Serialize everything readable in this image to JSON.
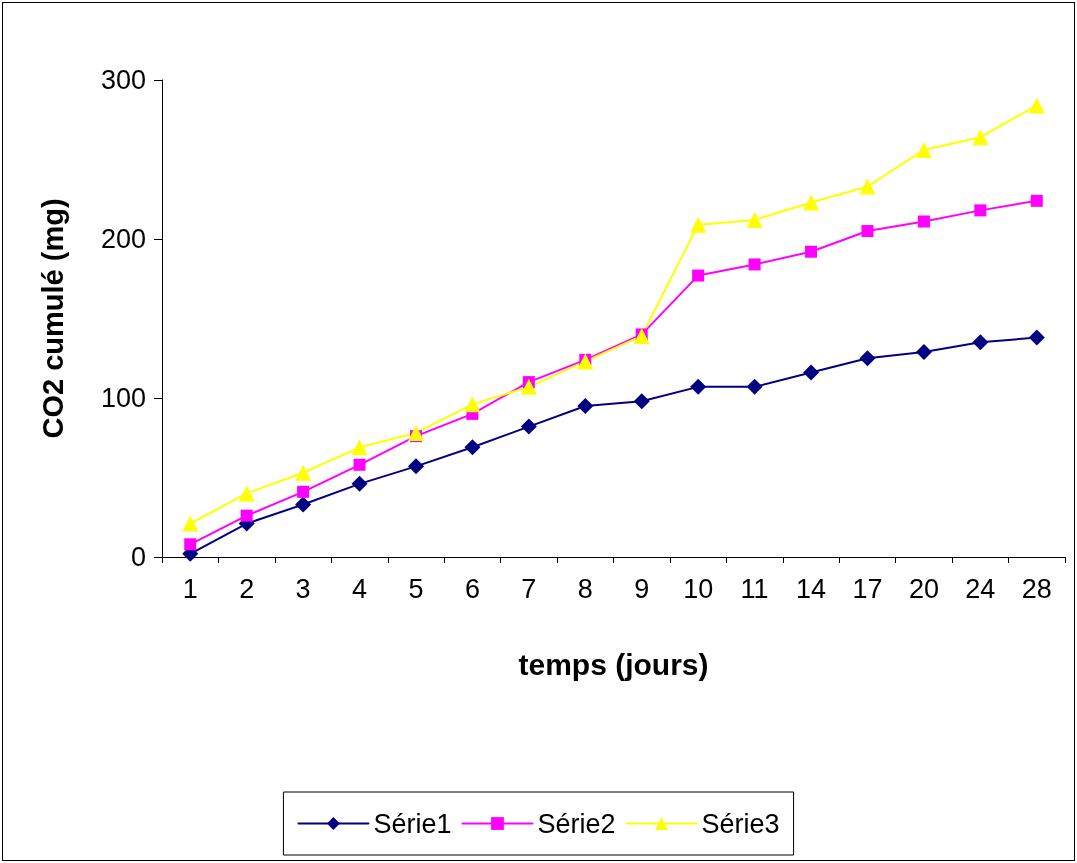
{
  "chart_data": {
    "type": "line",
    "xlabel": "temps (jours)",
    "ylabel": "CO2 cumulé (mg)",
    "categories": [
      "1",
      "2",
      "3",
      "4",
      "5",
      "6",
      "7",
      "8",
      "9",
      "10",
      "11",
      "14",
      "17",
      "20",
      "24",
      "28"
    ],
    "series": [
      {
        "name": "Série1",
        "color": "#000080",
        "marker": "diamond",
        "values": [
          2,
          21,
          33,
          46,
          57,
          69,
          82,
          95,
          98,
          107,
          107,
          116,
          125,
          129,
          135,
          138
        ]
      },
      {
        "name": "Série2",
        "color": "#ff00ff",
        "marker": "square",
        "values": [
          8,
          26,
          41,
          58,
          76,
          90,
          110,
          124,
          140,
          177,
          184,
          192,
          205,
          211,
          218,
          224
        ]
      },
      {
        "name": "Série3",
        "color": "#ffff00",
        "marker": "triangle",
        "values": [
          21,
          40,
          53,
          69,
          78,
          96,
          107,
          123,
          139,
          209,
          212,
          223,
          233,
          256,
          264,
          284
        ]
      }
    ],
    "ylim": [
      0,
      300
    ],
    "yticks": [
      0,
      100,
      200,
      300
    ],
    "grid": false,
    "legend": "bottom",
    "line_style": "solid"
  }
}
